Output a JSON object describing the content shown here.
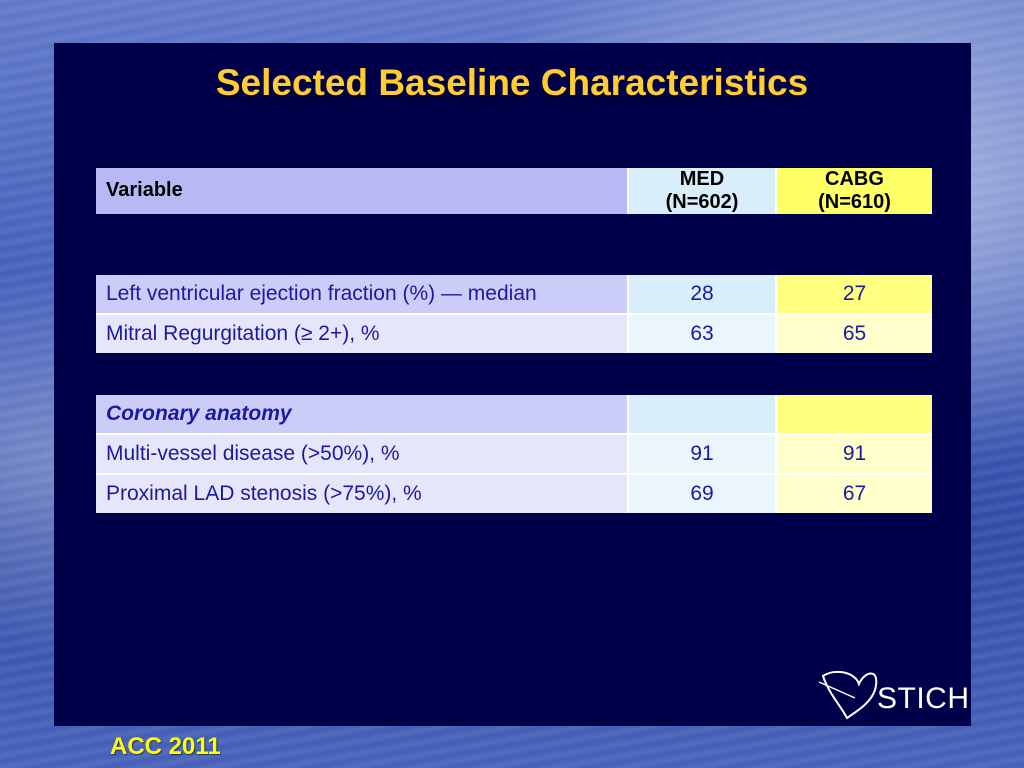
{
  "slide": {
    "title": "Selected Baseline Characteristics",
    "footer": "ACC 2011",
    "logo_text": "STICH"
  },
  "header": {
    "variable": "Variable",
    "med_label": "MED",
    "med_n": "(N=602)",
    "cabg_label": "CABG",
    "cabg_n": "(N=610)"
  },
  "table1": [
    {
      "label": "Left ventricular ejection fraction (%) — median",
      "med": "28",
      "cabg": "27"
    },
    {
      "label": "Mitral Regurgitation (≥ 2+), %",
      "med": "63",
      "cabg": "65"
    }
  ],
  "table2": {
    "section": "Coronary anatomy",
    "rows": [
      {
        "label": "Multi-vessel disease (>50%), %",
        "med": "91",
        "cabg": "91"
      },
      {
        "label": "Proximal LAD stenosis (>75%), %",
        "med": "69",
        "cabg": "67"
      }
    ]
  },
  "colors": {
    "panel": "#00004a",
    "title": "#ffcc33",
    "footer": "#ffff00",
    "med_column": "#d8eefa",
    "cabg_column": "#ffff66"
  }
}
